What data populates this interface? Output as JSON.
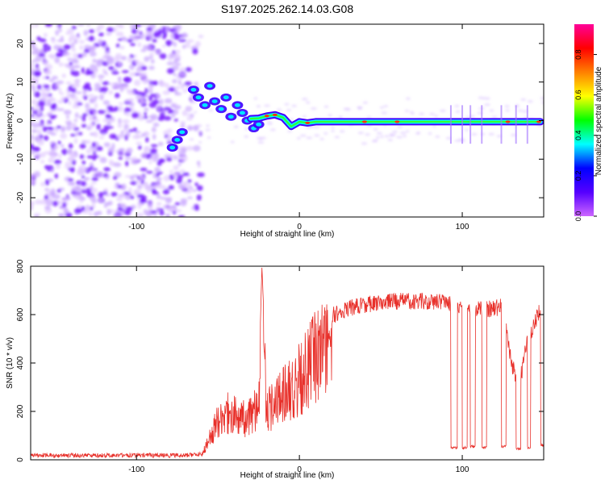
{
  "figure": {
    "title": "S197.2025.262.14.03.G08"
  },
  "chart_data": [
    {
      "type": "heatmap",
      "name": "spectrogram",
      "xlabel": "Height of straight line (km)",
      "ylabel": "Frequency (Hz)",
      "xlim": [
        -165,
        150
      ],
      "ylim": [
        -25,
        25
      ],
      "xticks": [
        -100,
        0,
        100
      ],
      "yticks": [
        -20,
        -10,
        0,
        10,
        20
      ],
      "colorbar": {
        "label": "Normalized spectral amplitude",
        "range": [
          0,
          0.95
        ],
        "ticks": [
          "0.0",
          "0.2",
          "0.4",
          "0.6",
          "0.8"
        ],
        "stops": [
          "#cc66ff",
          "#5500ff",
          "#0000ff",
          "#00ffff",
          "#00ff00",
          "#ffff00",
          "#ff8000",
          "#ff0000",
          "#ff0099"
        ]
      },
      "noise_region_km": [
        -165,
        -70
      ],
      "carrier_line": {
        "description": "narrow carrier near 0 Hz",
        "points": [
          [
            -30,
            0.5
          ],
          [
            -25,
            0.6
          ],
          [
            -20,
            1.2
          ],
          [
            -15,
            1.5
          ],
          [
            -10,
            0.8
          ],
          [
            -5,
            -1.5
          ],
          [
            0,
            -0.3
          ],
          [
            5,
            -0.6
          ],
          [
            10,
            -0.3
          ],
          [
            40,
            -0.3
          ],
          [
            80,
            -0.3
          ],
          [
            100,
            -0.3
          ],
          [
            130,
            -0.3
          ],
          [
            148,
            -0.3
          ]
        ]
      },
      "scattered_blobs": [
        [
          -78,
          -7
        ],
        [
          -75,
          -5
        ],
        [
          -72,
          -3
        ],
        [
          -65,
          8
        ],
        [
          -62,
          6
        ],
        [
          -58,
          4
        ],
        [
          -55,
          9
        ],
        [
          -52,
          5
        ],
        [
          -48,
          3
        ],
        [
          -45,
          6
        ],
        [
          -42,
          1
        ],
        [
          -38,
          4
        ],
        [
          -35,
          2
        ],
        [
          -32,
          0
        ],
        [
          -28,
          -2
        ],
        [
          -25,
          -1
        ]
      ]
    },
    {
      "type": "line",
      "name": "snr",
      "xlabel": "Height of straight line (km)",
      "ylabel": "SNR (10 * v/v)",
      "xlim": [
        -165,
        150
      ],
      "ylim": [
        0,
        800
      ],
      "xticks": [
        -100,
        0,
        100
      ],
      "yticks": [
        0,
        200,
        400,
        600,
        800
      ],
      "color": "#e8302a",
      "envelope": [
        [
          -165,
          25
        ],
        [
          -70,
          25
        ],
        [
          -60,
          30
        ],
        [
          -55,
          120
        ],
        [
          -50,
          220
        ],
        [
          -45,
          260
        ],
        [
          -40,
          240
        ],
        [
          -35,
          220
        ],
        [
          -30,
          250
        ],
        [
          -25,
          300
        ],
        [
          -23,
          800
        ],
        [
          -20,
          280
        ],
        [
          -15,
          300
        ],
        [
          -10,
          350
        ],
        [
          -5,
          400
        ],
        [
          0,
          440
        ],
        [
          5,
          500
        ],
        [
          10,
          560
        ],
        [
          15,
          600
        ],
        [
          20,
          620
        ],
        [
          30,
          650
        ],
        [
          40,
          665
        ],
        [
          60,
          680
        ],
        [
          80,
          680
        ],
        [
          90,
          680
        ],
        [
          100,
          650
        ],
        [
          110,
          645
        ],
        [
          120,
          650
        ],
        [
          125,
          660
        ],
        [
          130,
          430
        ],
        [
          135,
          330
        ],
        [
          140,
          520
        ],
        [
          145,
          600
        ],
        [
          150,
          680
        ]
      ],
      "dropouts": [
        [
          93,
          97,
          50
        ],
        [
          100,
          103,
          50
        ],
        [
          105,
          108,
          55
        ],
        [
          112,
          115,
          50
        ],
        [
          124,
          127,
          55
        ],
        [
          133,
          136,
          45
        ],
        [
          140,
          142,
          50
        ],
        [
          148,
          150,
          60
        ]
      ]
    }
  ]
}
